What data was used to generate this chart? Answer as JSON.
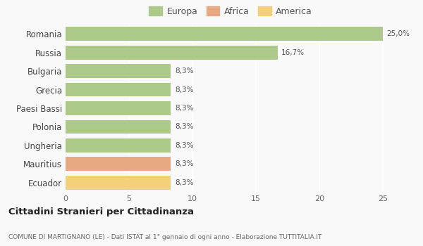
{
  "categories": [
    "Romania",
    "Russia",
    "Bulgaria",
    "Grecia",
    "Paesi Bassi",
    "Polonia",
    "Ungheria",
    "Mauritius",
    "Ecuador"
  ],
  "values": [
    25.0,
    16.7,
    8.3,
    8.3,
    8.3,
    8.3,
    8.3,
    8.3,
    8.3
  ],
  "colors": [
    "#adc98a",
    "#adc98a",
    "#adc98a",
    "#adc98a",
    "#adc98a",
    "#adc98a",
    "#adc98a",
    "#e8a882",
    "#f5d07a"
  ],
  "labels": [
    "25,0%",
    "16,7%",
    "8,3%",
    "8,3%",
    "8,3%",
    "8,3%",
    "8,3%",
    "8,3%",
    "8,3%"
  ],
  "legend": [
    {
      "label": "Europa",
      "color": "#adc98a"
    },
    {
      "label": "Africa",
      "color": "#e8a882"
    },
    {
      "label": "America",
      "color": "#f5d07a"
    }
  ],
  "xlim": [
    0,
    26
  ],
  "xticks": [
    0,
    5,
    10,
    15,
    20,
    25
  ],
  "title": "Cittadini Stranieri per Cittadinanza",
  "subtitle": "COMUNE DI MARTIGNANO (LE) - Dati ISTAT al 1° gennaio di ogni anno - Elaborazione TUTTITALIA.IT",
  "bg_color": "#f9f9f9",
  "grid_color": "#ffffff"
}
